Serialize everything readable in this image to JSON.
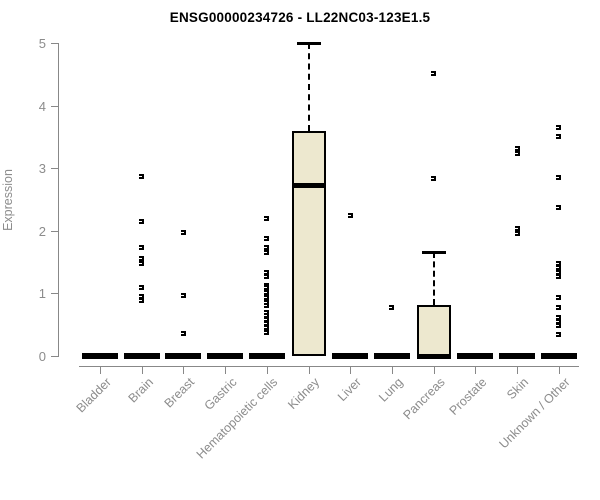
{
  "page": {
    "title": "ENSG00000234726 - LL22NC03-123E1.5"
  },
  "chart_data": {
    "type": "box",
    "title": "ENSG00000234726 - LL22NC03-123E1.5",
    "xlabel": "",
    "ylabel": "Expression",
    "ylim": [
      0,
      5
    ],
    "yticks": [
      0,
      1,
      2,
      3,
      4,
      5
    ],
    "grid": false,
    "legend": "none",
    "box_fill_color": "#EDE8CF",
    "box_line_color": "#000000",
    "axis_color": "#888888",
    "axis_text_color": "#8c8c8c",
    "categories": [
      "Bladder",
      "Brain",
      "Breast",
      "Gastric",
      "Hematopoietic cells",
      "Kidney",
      "Liver",
      "Lung",
      "Pancreas",
      "Prostate",
      "Skin",
      "Unknown / Other"
    ],
    "boxes": [
      {
        "category": "Bladder",
        "q1": 0,
        "median": 0,
        "q3": 0,
        "whisker_low": 0,
        "whisker_high": 0,
        "outliers": []
      },
      {
        "category": "Brain",
        "q1": 0,
        "median": 0,
        "q3": 0,
        "whisker_low": 0,
        "whisker_high": 0,
        "outliers": [
          2.87,
          2.15,
          1.73,
          1.56,
          1.48,
          1.1,
          0.95,
          0.89
        ]
      },
      {
        "category": "Breast",
        "q1": 0,
        "median": 0,
        "q3": 0,
        "whisker_low": 0,
        "whisker_high": 0,
        "outliers": [
          1.97,
          0.97,
          0.36
        ]
      },
      {
        "category": "Gastric",
        "q1": 0,
        "median": 0,
        "q3": 0,
        "whisker_low": 0,
        "whisker_high": 0,
        "outliers": []
      },
      {
        "category": "Hematopoietic cells",
        "q1": 0,
        "median": 0,
        "q3": 0,
        "whisker_low": 0,
        "whisker_high": 0,
        "outliers": [
          2.2,
          1.87,
          1.73,
          1.66,
          1.34,
          1.27,
          1.13,
          1.09,
          1.05,
          1.01,
          0.97,
          0.93,
          0.89,
          0.85,
          0.81,
          0.7,
          0.64,
          0.58,
          0.52,
          0.45,
          0.37
        ]
      },
      {
        "category": "Kidney",
        "q1": 0,
        "median": 2.73,
        "q3": 3.6,
        "whisker_low": 0,
        "whisker_high": 5.0,
        "outliers": []
      },
      {
        "category": "Liver",
        "q1": 0,
        "median": 0,
        "q3": 0,
        "whisker_low": 0,
        "whisker_high": 0,
        "outliers": [
          2.24
        ]
      },
      {
        "category": "Lung",
        "q1": 0,
        "median": 0,
        "q3": 0,
        "whisker_low": 0,
        "whisker_high": 0,
        "outliers": [
          0.78
        ]
      },
      {
        "category": "Pancreas",
        "q1": 0,
        "median": 0,
        "q3": 0.81,
        "whisker_low": 0,
        "whisker_high": 1.66,
        "outliers": [
          4.52,
          2.84
        ]
      },
      {
        "category": "Prostate",
        "q1": 0,
        "median": 0,
        "q3": 0,
        "whisker_low": 0,
        "whisker_high": 0,
        "outliers": []
      },
      {
        "category": "Skin",
        "q1": 0,
        "median": 0,
        "q3": 0,
        "whisker_low": 0,
        "whisker_high": 0,
        "outliers": [
          3.32,
          3.24,
          2.03,
          1.95
        ]
      },
      {
        "category": "Unknown / Other",
        "q1": 0,
        "median": 0,
        "q3": 0,
        "whisker_low": 0,
        "whisker_high": 0,
        "outliers": [
          3.65,
          3.5,
          2.85,
          2.37,
          1.48,
          1.41,
          1.34,
          1.27,
          0.94,
          0.77,
          0.62,
          0.55,
          0.48,
          0.34
        ]
      }
    ]
  }
}
